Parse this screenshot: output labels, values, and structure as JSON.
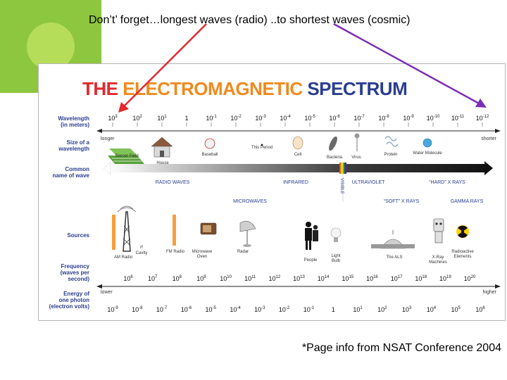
{
  "slide": {
    "title": "Don’t’ forget…longest waves (radio) ..to shortest waves (cosmic)",
    "citation": "*Page info from NSAT Conference 2004"
  },
  "spectrum": {
    "title_parts": [
      {
        "text": "THE ",
        "color": "#e0282d"
      },
      {
        "text": "ELECTROMAGNETIC ",
        "color": "#f08a1e"
      },
      {
        "text": "SPECTRUM",
        "color": "#2a3d8f"
      }
    ],
    "row_labels": {
      "wavelength": [
        "Wavelength",
        "(in meters)"
      ],
      "size": [
        "Size of a",
        "wavelength"
      ],
      "common_name": [
        "Common",
        "name of wave"
      ],
      "sources": [
        "Sources"
      ],
      "frequency": [
        "Frequency",
        "(waves per",
        "second)"
      ],
      "energy": [
        "Energy of",
        "one photon",
        "(electron volts)"
      ]
    },
    "wavelength_ticks": [
      {
        "base": "10",
        "exp": "3"
      },
      {
        "base": "10",
        "exp": "2"
      },
      {
        "base": "10",
        "exp": "1"
      },
      {
        "base": "1",
        "exp": ""
      },
      {
        "base": "10",
        "exp": "-1"
      },
      {
        "base": "10",
        "exp": "-2"
      },
      {
        "base": "10",
        "exp": "-3"
      },
      {
        "base": "10",
        "exp": "-4"
      },
      {
        "base": "10",
        "exp": "-5"
      },
      {
        "base": "10",
        "exp": "-6"
      },
      {
        "base": "10",
        "exp": "-7"
      },
      {
        "base": "10",
        "exp": "-8"
      },
      {
        "base": "10",
        "exp": "-9"
      },
      {
        "base": "10",
        "exp": "-10"
      },
      {
        "base": "10",
        "exp": "-11"
      },
      {
        "base": "10",
        "exp": "-12"
      }
    ],
    "longer_label": "longer",
    "shorter_label": "shorter",
    "size_objects": [
      "Soccer Field",
      "House",
      "Baseball",
      "This Period",
      "Cell",
      "Bacteria",
      "Virus",
      "Protein",
      "Water Molecule"
    ],
    "wave_names": {
      "radio": "RADIO WAVES",
      "microwaves": "MICROWAVES",
      "infrared": "INFRARED",
      "visible": "VISIBLE",
      "ultraviolet": "ULTRAVIOLET",
      "soft_xrays": "“SOFT” X RAYS",
      "hard_xrays": "“HARD” X RAYS",
      "gamma": "GAMMA RAYS"
    },
    "sources": [
      "AM Radio",
      "FM Radio",
      "Microwave Oven",
      "Radar",
      "People",
      "Light Bulb",
      "The ALS",
      "X-Ray Machines",
      "Radioactive Elements"
    ],
    "source_fragments": [
      "rf",
      "Cavity"
    ],
    "frequency_ticks": [
      "6",
      "7",
      "8",
      "9",
      "10",
      "11",
      "12",
      "13",
      "14",
      "15",
      "16",
      "17",
      "18",
      "19",
      "20"
    ],
    "frequency_base": "10",
    "lower_label": "lower",
    "higher_label": "higher",
    "energy_ticks": [
      "-9",
      "-8",
      "-7",
      "-6",
      "-5",
      "-4",
      "-3",
      "-2",
      "-1",
      "",
      "1",
      "2",
      "3",
      "4",
      "5",
      "6"
    ],
    "energy_base": "10",
    "colors": {
      "red_arrow": "#e8262b",
      "purple_arrow": "#7a2fb5",
      "row_label": "#2a3d8f",
      "wave_label": "#2a3d8f"
    }
  }
}
